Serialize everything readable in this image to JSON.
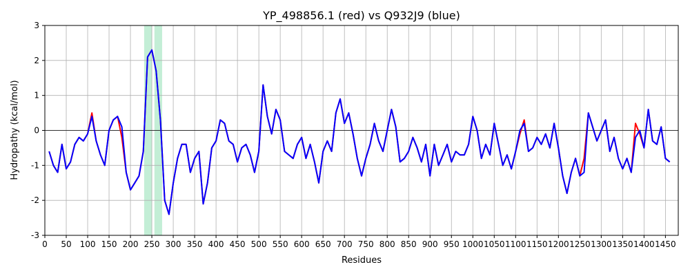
{
  "chart_data": {
    "type": "line",
    "title": "YP_498856.1 (red) vs Q932J9 (blue)",
    "x_label": "Residues",
    "y_label": "Hydropathy (kcal/mol)",
    "xlim": [
      0,
      1480
    ],
    "ylim": [
      -3,
      3
    ],
    "xticks": [
      0,
      50,
      100,
      150,
      200,
      250,
      300,
      350,
      400,
      450,
      500,
      550,
      600,
      650,
      700,
      750,
      800,
      850,
      900,
      950,
      1000,
      1050,
      1100,
      1150,
      1200,
      1250,
      1300,
      1350,
      1400,
      1450
    ],
    "yticks": [
      -3,
      -2,
      -1,
      0,
      1,
      2,
      3
    ],
    "grid": true,
    "hline": 0,
    "highlight_spans": [
      [
        232,
        250
      ],
      [
        256,
        274
      ]
    ],
    "highlight_color": "#c3eed6",
    "x": [
      10,
      20,
      30,
      40,
      50,
      60,
      70,
      80,
      90,
      100,
      110,
      120,
      130,
      140,
      150,
      160,
      170,
      180,
      190,
      200,
      210,
      220,
      230,
      240,
      250,
      260,
      270,
      280,
      290,
      300,
      310,
      320,
      330,
      340,
      350,
      360,
      370,
      380,
      390,
      400,
      410,
      420,
      430,
      440,
      450,
      460,
      470,
      480,
      490,
      500,
      510,
      520,
      530,
      540,
      550,
      560,
      570,
      580,
      590,
      600,
      610,
      620,
      630,
      640,
      650,
      660,
      670,
      680,
      690,
      700,
      710,
      720,
      730,
      740,
      750,
      760,
      770,
      780,
      790,
      800,
      810,
      820,
      830,
      840,
      850,
      860,
      870,
      880,
      890,
      900,
      910,
      920,
      930,
      940,
      950,
      960,
      970,
      980,
      990,
      1000,
      1010,
      1020,
      1030,
      1040,
      1050,
      1060,
      1070,
      1080,
      1090,
      1100,
      1110,
      1120,
      1130,
      1140,
      1150,
      1160,
      1170,
      1180,
      1190,
      1200,
      1210,
      1220,
      1230,
      1240,
      1250,
      1260,
      1270,
      1280,
      1290,
      1300,
      1310,
      1320,
      1330,
      1340,
      1350,
      1360,
      1370,
      1380,
      1390,
      1400,
      1410,
      1420,
      1430,
      1440,
      1450,
      1460
    ],
    "series": [
      {
        "name": "YP_498856.1",
        "color": "#ff0000",
        "values": [
          -0.6,
          -1.0,
          -1.2,
          -0.4,
          -1.1,
          -0.9,
          -0.4,
          -0.2,
          -0.3,
          -0.1,
          0.5,
          -0.3,
          -0.7,
          -1.0,
          0.0,
          0.3,
          0.4,
          -0.2,
          -1.2,
          -1.7,
          -1.5,
          -1.3,
          -0.6,
          2.1,
          2.3,
          1.7,
          0.3,
          -2.0,
          -2.4,
          -1.5,
          -0.8,
          -0.4,
          -0.4,
          -1.2,
          -0.8,
          -0.6,
          -2.1,
          -1.5,
          -0.5,
          -0.3,
          0.3,
          0.2,
          -0.3,
          -0.4,
          -0.9,
          -0.5,
          -0.4,
          -0.7,
          -1.2,
          -0.6,
          1.3,
          0.4,
          -0.1,
          0.6,
          0.3,
          -0.6,
          -0.7,
          -0.8,
          -0.4,
          -0.2,
          -0.8,
          -0.4,
          -0.9,
          -1.5,
          -0.6,
          -0.3,
          -0.6,
          0.5,
          0.9,
          0.2,
          0.5,
          -0.1,
          -0.8,
          -1.3,
          -0.8,
          -0.4,
          0.2,
          -0.3,
          -0.6,
          0.0,
          0.6,
          0.1,
          -0.9,
          -0.8,
          -0.6,
          -0.2,
          -0.5,
          -0.9,
          -0.4,
          -1.3,
          -0.4,
          -1.0,
          -0.7,
          -0.4,
          -0.9,
          -0.6,
          -0.7,
          -0.7,
          -0.4,
          0.4,
          0.0,
          -0.8,
          -0.4,
          -0.7,
          0.2,
          -0.4,
          -1.0,
          -0.7,
          -1.1,
          -0.6,
          -0.1,
          0.3,
          -0.6,
          -0.5,
          -0.2,
          -0.4,
          -0.1,
          -0.5,
          0.2,
          -0.5,
          -1.3,
          -1.8,
          -1.2,
          -0.8,
          -1.3,
          -0.8,
          0.5,
          0.1,
          -0.3,
          0.0,
          0.3,
          -0.6,
          -0.2,
          -0.8,
          -1.1,
          -0.8,
          -1.2,
          0.2,
          -0.1,
          -0.5,
          0.6,
          -0.3,
          -0.4,
          0.1,
          -0.8,
          -0.9
        ]
      },
      {
        "name": "Q932J9",
        "color": "#0000ff",
        "values": [
          -0.6,
          -1.0,
          -1.2,
          -0.4,
          -1.1,
          -0.9,
          -0.4,
          -0.2,
          -0.3,
          -0.1,
          0.4,
          -0.3,
          -0.7,
          -1.0,
          0.0,
          0.3,
          0.4,
          0.1,
          -1.2,
          -1.7,
          -1.5,
          -1.3,
          -0.6,
          2.1,
          2.3,
          1.7,
          0.3,
          -2.0,
          -2.4,
          -1.5,
          -0.8,
          -0.4,
          -0.4,
          -1.2,
          -0.8,
          -0.6,
          -2.1,
          -1.5,
          -0.5,
          -0.3,
          0.3,
          0.2,
          -0.3,
          -0.4,
          -0.9,
          -0.5,
          -0.4,
          -0.7,
          -1.2,
          -0.6,
          1.3,
          0.4,
          -0.1,
          0.6,
          0.3,
          -0.6,
          -0.7,
          -0.8,
          -0.4,
          -0.2,
          -0.8,
          -0.4,
          -0.9,
          -1.5,
          -0.6,
          -0.3,
          -0.6,
          0.5,
          0.9,
          0.2,
          0.5,
          -0.1,
          -0.8,
          -1.3,
          -0.8,
          -0.4,
          0.2,
          -0.3,
          -0.6,
          0.0,
          0.6,
          0.1,
          -0.9,
          -0.8,
          -0.6,
          -0.2,
          -0.5,
          -0.9,
          -0.4,
          -1.3,
          -0.4,
          -1.0,
          -0.7,
          -0.4,
          -0.9,
          -0.6,
          -0.7,
          -0.7,
          -0.4,
          0.4,
          0.0,
          -0.8,
          -0.4,
          -0.7,
          0.2,
          -0.4,
          -1.0,
          -0.7,
          -1.1,
          -0.6,
          0.0,
          0.2,
          -0.6,
          -0.5,
          -0.2,
          -0.4,
          -0.1,
          -0.5,
          0.2,
          -0.5,
          -1.3,
          -1.8,
          -1.2,
          -0.8,
          -1.3,
          -1.2,
          0.5,
          0.1,
          -0.3,
          0.0,
          0.3,
          -0.6,
          -0.2,
          -0.8,
          -1.1,
          -0.8,
          -1.2,
          -0.2,
          0.0,
          -0.5,
          0.6,
          -0.3,
          -0.4,
          0.1,
          -0.8,
          -0.9
        ]
      }
    ]
  }
}
